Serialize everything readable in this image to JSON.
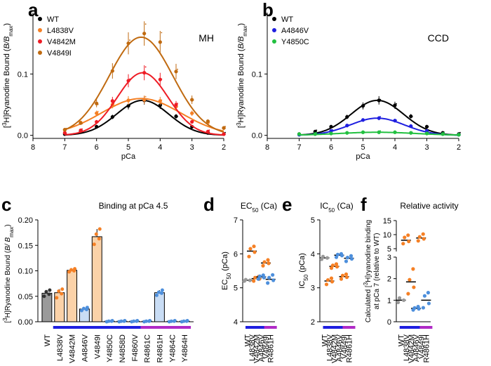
{
  "colors": {
    "black": "#000000",
    "orange": "#f58025",
    "red": "#ee1c25",
    "brown": "#c06a10",
    "blue": "#1f1fe0",
    "green": "#22c040",
    "grey": "#999999",
    "lightblue": "#4d8fdc",
    "purple": "#b02ac6"
  },
  "chart_data": [
    {
      "type": "line",
      "panel": "a",
      "annotation": "MH",
      "xlabel": "pCa",
      "ylabel_parts": [
        "[",
        "3",
        "H]Ryanodine Bound (",
        "B/B",
        "max",
        ")"
      ],
      "x_ticks": [
        "8",
        "7",
        "6",
        "5",
        "4",
        "3",
        "2"
      ],
      "y_ticks": [
        "0.0",
        "0.1"
      ],
      "xlim": [
        8,
        2
      ],
      "ylim": [
        -0.005,
        0.2
      ],
      "x_reversed": true,
      "legend_position": "top-left",
      "x": [
        7,
        6.5,
        6,
        5.5,
        5,
        4.5,
        4,
        3.5,
        3,
        2.5,
        2
      ],
      "series": [
        {
          "name": "WT",
          "color_key": "black",
          "peak": 0.057,
          "center": 4.55,
          "width": 0.82,
          "values": [
            0.002,
            0.006,
            0.014,
            0.03,
            0.048,
            0.057,
            0.049,
            0.031,
            0.014,
            0.004,
            0.002
          ]
        },
        {
          "name": "L4838V",
          "color_key": "orange",
          "peak": 0.06,
          "center": 4.6,
          "width": 1.25,
          "values": [
            0.009,
            0.021,
            0.036,
            0.05,
            0.057,
            0.058,
            0.056,
            0.047,
            0.036,
            0.021,
            0.012
          ]
        },
        {
          "name": "V4842M",
          "color_key": "red",
          "peak": 0.102,
          "center": 4.55,
          "width": 0.8,
          "values": [
            0.004,
            0.008,
            0.022,
            0.056,
            0.089,
            0.102,
            0.091,
            0.05,
            0.022,
            0.006,
            0.002
          ]
        },
        {
          "name": "V4849I",
          "color_key": "brown",
          "peak": 0.16,
          "center": 4.6,
          "width": 1.0,
          "values": [
            0.009,
            0.02,
            0.052,
            0.105,
            0.15,
            0.166,
            0.152,
            0.104,
            0.058,
            0.023,
            0.012
          ]
        }
      ]
    },
    {
      "type": "line",
      "panel": "b",
      "annotation": "CCD",
      "xlabel": "pCa",
      "ylabel_parts": [
        "[",
        "3",
        "H]Ryanodine Bound (",
        "B/B",
        "max",
        ")"
      ],
      "x_ticks": [
        "8",
        "7",
        "6",
        "5",
        "4",
        "3",
        "2"
      ],
      "y_ticks": [
        "0.0",
        "0.1"
      ],
      "xlim": [
        8,
        2
      ],
      "ylim": [
        -0.005,
        0.2
      ],
      "x_reversed": true,
      "legend_position": "top-left",
      "x": [
        7,
        6.5,
        6,
        5.5,
        5,
        4.5,
        4,
        3.5,
        3,
        2.5,
        2
      ],
      "series": [
        {
          "name": "WT",
          "color_key": "black",
          "peak": 0.057,
          "center": 4.55,
          "width": 0.82,
          "values": [
            0.002,
            0.006,
            0.014,
            0.03,
            0.048,
            0.057,
            0.049,
            0.031,
            0.014,
            0.004,
            0.002
          ]
        },
        {
          "name": "A4846V",
          "color_key": "blue",
          "peak": 0.028,
          "center": 4.55,
          "width": 0.85,
          "values": [
            0.001,
            0.002,
            0.007,
            0.016,
            0.025,
            0.028,
            0.024,
            0.015,
            0.007,
            0.002,
            0.001
          ]
        },
        {
          "name": "Y4850C",
          "color_key": "green",
          "peak": 0.005,
          "center": 4.55,
          "width": 1.2,
          "values": [
            0.002,
            0.002,
            0.003,
            0.004,
            0.005,
            0.005,
            0.005,
            0.004,
            0.003,
            0.002,
            0.001
          ]
        }
      ]
    },
    {
      "type": "bar",
      "panel": "c",
      "title": "Binding at pCa 4.5",
      "ylabel_parts": [
        "[",
        "3",
        "H]Ryanodine Bound (",
        "B/ B",
        "max",
        ")"
      ],
      "y_ticks": [
        "0.00",
        "0.05",
        "0.10",
        "0.15",
        "0.20"
      ],
      "ylim": [
        0,
        0.2
      ],
      "categories": [
        "WT",
        "L4838V",
        "V4842M",
        "A4846V",
        "V4849I",
        "Y4850C",
        "N4858D",
        "F4860V",
        "R4861C",
        "R4861H",
        "Y4864C",
        "Y4864H"
      ],
      "values": [
        0.056,
        0.057,
        0.101,
        0.025,
        0.167,
        0.001,
        0.001,
        0.001,
        0.001,
        0.057,
        0.001,
        0.001
      ],
      "point_values": [
        [
          0.05,
          0.054,
          0.059,
          0.062
        ],
        [
          0.047,
          0.055,
          0.06,
          0.064
        ],
        [
          0.098,
          0.1,
          0.102,
          0.104
        ],
        [
          0.022,
          0.024,
          0.026,
          0.028
        ],
        [
          0.152,
          0.163,
          0.172,
          0.182
        ],
        [
          0.0,
          0.001,
          0.001,
          0.002
        ],
        [
          0.0,
          0.001,
          0.001,
          0.002
        ],
        [
          0.0,
          0.001,
          0.001,
          0.002
        ],
        [
          0.0,
          0.001,
          0.001,
          0.002
        ],
        [
          0.052,
          0.056,
          0.058,
          0.062
        ],
        [
          0.0,
          0.001,
          0.001,
          0.002
        ],
        [
          0.0,
          0.001,
          0.001,
          0.002
        ]
      ],
      "bar_color_keys": [
        "grey",
        "orange",
        "orange",
        "lightblue",
        "orange",
        "lightblue",
        "lightblue",
        "lightblue",
        "lightblue",
        "lightblue",
        "lightblue",
        "lightblue"
      ],
      "group_bars": [
        {
          "from": 1,
          "to": 7,
          "color_key": "blue"
        },
        {
          "from": 8,
          "to": 11,
          "color_key": "purple"
        }
      ]
    },
    {
      "type": "scatter",
      "panel": "d",
      "title_parts": [
        "EC",
        "50",
        " (Ca)"
      ],
      "ylabel_parts": [
        "EC",
        "50",
        " (pCa)"
      ],
      "y_ticks": [
        "4",
        "5",
        "6",
        "7"
      ],
      "ylim": [
        4,
        7
      ],
      "categories": [
        "WT",
        "L4838V",
        "V4842M",
        "A4846V",
        "V4849I",
        "R4861H"
      ],
      "means": [
        5.22,
        6.08,
        5.27,
        5.32,
        5.73,
        5.25
      ],
      "point_values": [
        [
          5.2,
          5.22,
          5.24
        ],
        [
          5.92,
          6.05,
          6.15,
          6.22
        ],
        [
          5.2,
          5.26,
          5.3,
          5.33
        ],
        [
          5.26,
          5.3,
          5.34,
          5.37
        ],
        [
          5.65,
          5.72,
          5.76,
          5.82
        ],
        [
          5.14,
          5.22,
          5.3,
          5.38
        ]
      ],
      "point_color_keys": [
        "grey",
        "orange",
        "orange",
        "lightblue",
        "orange",
        "lightblue"
      ],
      "group_bars": [
        {
          "from": 1,
          "to": 4,
          "color_key": "blue"
        },
        {
          "from": 5,
          "to": 5,
          "color_key": "purple"
        }
      ]
    },
    {
      "type": "scatter",
      "panel": "e",
      "title_parts": [
        "IC",
        "50",
        " (Ca)"
      ],
      "ylabel_parts": [
        "IC",
        "50",
        " (pCa)"
      ],
      "y_ticks": [
        "2",
        "3",
        "4",
        "5"
      ],
      "ylim": [
        2,
        5
      ],
      "categories": [
        "WT",
        "L4838V",
        "V4842M",
        "A4846V",
        "V4849I",
        "R4861H"
      ],
      "means": [
        3.88,
        3.2,
        3.63,
        3.96,
        3.33,
        3.87
      ],
      "point_values": [
        [
          3.84,
          3.88,
          3.92
        ],
        [
          3.1,
          3.18,
          3.23,
          3.28
        ],
        [
          3.58,
          3.62,
          3.66,
          3.7
        ],
        [
          3.9,
          3.95,
          3.98,
          4.0
        ],
        [
          3.26,
          3.31,
          3.36,
          3.4
        ],
        [
          3.78,
          3.85,
          3.89,
          3.94
        ]
      ],
      "point_color_keys": [
        "grey",
        "orange",
        "orange",
        "lightblue",
        "orange",
        "lightblue"
      ],
      "group_bars": [
        {
          "from": 1,
          "to": 4,
          "color_key": "blue"
        },
        {
          "from": 5,
          "to": 5,
          "color_key": "purple"
        }
      ]
    },
    {
      "type": "scatter",
      "panel": "f",
      "title": "Relative activity",
      "ylabel_line1_parts": [
        "Calculated [",
        "3",
        "H]ryanodine binding"
      ],
      "ylabel_line2": "at pCa 7 (relative to WT)",
      "broken_axis": true,
      "y_ticks_lower": [
        "0",
        "1",
        "2",
        "3"
      ],
      "y_ticks_upper": [
        "5",
        "10",
        "15"
      ],
      "ylim_lower": [
        0,
        3
      ],
      "ylim_upper": [
        4,
        15
      ],
      "categories": [
        "WT",
        "L4838V",
        "V4842M",
        "A4846V",
        "V4849I",
        "R4861H"
      ],
      "means": [
        1.0,
        8.0,
        1.85,
        0.62,
        8.8,
        1.0
      ],
      "point_values": [
        [
          0.9,
          1.0,
          1.1
        ],
        [
          6.8,
          7.6,
          9.0,
          9.8
        ],
        [
          1.3,
          1.6,
          1.95,
          2.45
        ],
        [
          0.55,
          0.6,
          0.64,
          0.7
        ],
        [
          7.8,
          8.5,
          9.2,
          10.2
        ],
        [
          0.65,
          0.85,
          1.2,
          1.35
        ]
      ],
      "point_color_keys": [
        "grey",
        "orange",
        "orange",
        "lightblue",
        "orange",
        "lightblue"
      ],
      "group_bars": [
        {
          "from": 1,
          "to": 4,
          "color_key": "blue"
        },
        {
          "from": 5,
          "to": 5,
          "color_key": "purple"
        }
      ]
    }
  ]
}
